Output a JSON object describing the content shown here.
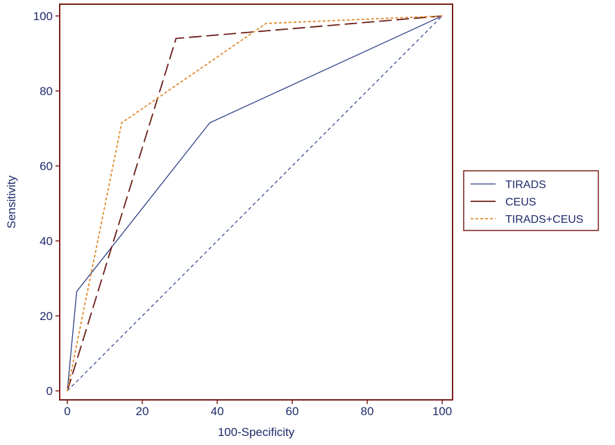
{
  "chart_data": {
    "type": "line",
    "title": "",
    "xlabel": "100-Specificity",
    "ylabel": "Sensitivity",
    "xlim": [
      0,
      100
    ],
    "ylim": [
      0,
      100
    ],
    "xticks": [
      "0",
      "20",
      "40",
      "60",
      "80",
      "100"
    ],
    "yticks": [
      "0",
      "20",
      "40",
      "60",
      "80",
      "100"
    ],
    "grid": false,
    "legend_position": "right",
    "series": [
      {
        "name": "TIRADS",
        "color": "#2c3e86",
        "style": "solid",
        "points": [
          [
            0,
            0
          ],
          [
            2.5,
            26.5
          ],
          [
            38,
            71.5
          ],
          [
            100,
            100
          ]
        ]
      },
      {
        "name": "CEUS",
        "color": "#6b1c16",
        "style": "long-dash",
        "points": [
          [
            0,
            0
          ],
          [
            29,
            94
          ],
          [
            100,
            100
          ]
        ]
      },
      {
        "name": "TIRADS+CEUS",
        "color": "#e0892b",
        "style": "short-dash",
        "points": [
          [
            0,
            0
          ],
          [
            14.5,
            71.5
          ],
          [
            53,
            98
          ],
          [
            100,
            100
          ]
        ]
      }
    ],
    "reference_line": {
      "color": "#2c3e86",
      "style": "dashed",
      "points": [
        [
          0,
          0
        ],
        [
          100,
          100
        ]
      ]
    },
    "axis_color": "#7a1f1a"
  }
}
